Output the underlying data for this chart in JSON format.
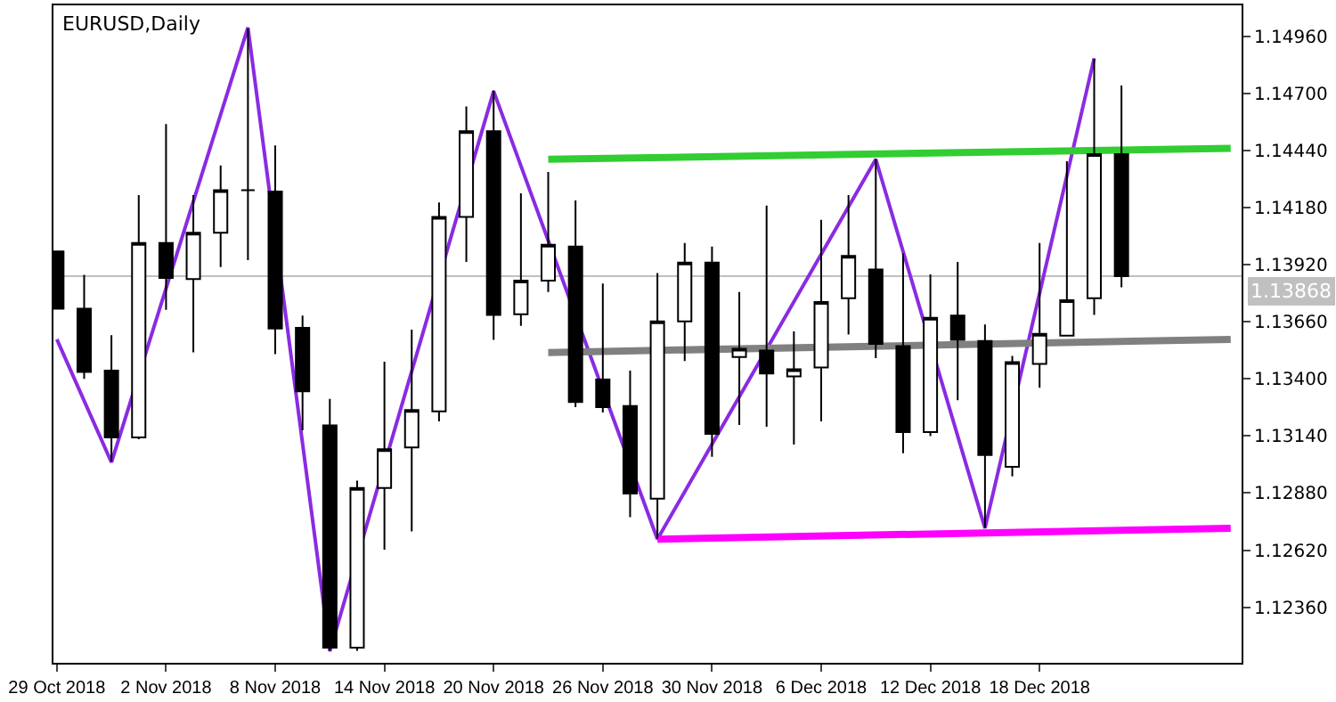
{
  "chart_data": {
    "type": "candlestick",
    "title": "EURUSD,Daily",
    "categories": [
      "29 Oct 2018",
      null,
      null,
      null,
      "2 Nov 2018",
      null,
      null,
      null,
      "8 Nov 2018",
      null,
      null,
      null,
      "14 Nov 2018",
      null,
      null,
      null,
      "20 Nov 2018",
      null,
      null,
      null,
      "26 Nov 2018",
      null,
      null,
      null,
      "30 Nov 2018",
      null,
      null,
      null,
      "6 Dec 2018",
      null,
      null,
      null,
      "12 Dec 2018",
      null,
      null,
      null,
      "18 Dec 2018",
      null,
      null,
      null,
      null,
      null,
      null,
      null
    ],
    "ohlc": [
      [
        1.1398,
        1.1398,
        1.1372,
        1.1372
      ],
      [
        1.1372,
        1.13874,
        1.134,
        1.13432
      ],
      [
        1.13438,
        1.13599,
        1.13024,
        1.13133
      ],
      [
        1.13133,
        1.14237,
        1.13125,
        1.14019
      ],
      [
        1.14019,
        1.1456,
        1.13715,
        1.1386
      ],
      [
        1.13855,
        1.14237,
        1.13521,
        1.14065
      ],
      [
        1.14065,
        1.14372,
        1.13909,
        1.14259
      ],
      [
        1.14259,
        1.14996,
        1.13941,
        1.14259
      ],
      [
        1.14253,
        1.14463,
        1.13513,
        1.13629
      ],
      [
        1.13632,
        1.13688,
        1.13166,
        1.13343
      ],
      [
        1.13188,
        1.13309,
        1.12162,
        1.12176
      ],
      [
        1.12176,
        1.12937,
        1.12162,
        1.12903
      ],
      [
        1.12903,
        1.13478,
        1.12622,
        1.1308
      ],
      [
        1.13088,
        1.13624,
        1.12705,
        1.13258
      ],
      [
        1.13252,
        1.14203,
        1.13206,
        1.14138
      ],
      [
        1.14138,
        1.14641,
        1.13933,
        1.14528
      ],
      [
        1.14528,
        1.14714,
        1.13578,
        1.13691
      ],
      [
        1.13694,
        1.14245,
        1.13642,
        1.13847
      ],
      [
        1.13847,
        1.14342,
        1.13796,
        1.14011
      ],
      [
        1.14003,
        1.14213,
        1.13271,
        1.13295
      ],
      [
        1.13397,
        1.13834,
        1.13247,
        1.13271
      ],
      [
        1.13276,
        1.13438,
        1.1277,
        1.12878
      ],
      [
        1.12854,
        1.13882,
        1.12673,
        1.13662
      ],
      [
        1.13662,
        1.14019,
        1.13481,
        1.1393
      ],
      [
        1.1393,
        1.14003,
        1.13045,
        1.1315
      ],
      [
        1.135,
        1.13796,
        1.1319,
        1.13537
      ],
      [
        1.13529,
        1.14189,
        1.13182,
        1.13424
      ],
      [
        1.13411,
        1.13616,
        1.13101,
        1.13444
      ],
      [
        1.13452,
        1.14124,
        1.13206,
        1.1375
      ],
      [
        1.13767,
        1.14237,
        1.13602,
        1.1396
      ],
      [
        1.13898,
        1.14401,
        1.13494,
        1.13559
      ],
      [
        1.13549,
        1.13971,
        1.13061,
        1.13158
      ],
      [
        1.13158,
        1.13876,
        1.13139,
        1.13678
      ],
      [
        1.13688,
        1.13933,
        1.13303,
        1.13578
      ],
      [
        1.13573,
        1.13648,
        1.12722,
        1.13053
      ],
      [
        1.12999,
        1.13505,
        1.12956,
        1.13476
      ],
      [
        1.13468,
        1.14019,
        1.1336,
        1.13605
      ],
      [
        1.13597,
        1.14391,
        1.13597,
        1.13758
      ],
      [
        1.13767,
        1.14857,
        1.13691,
        1.14423
      ],
      [
        1.14423,
        1.14736,
        1.13817,
        1.13868
      ],
      null,
      null,
      null,
      null
    ],
    "series": [
      {
        "type": "line",
        "color": "#8a2be2",
        "values": [
          1.1358,
          null,
          1.1302,
          null,
          null,
          null,
          null,
          1.15,
          null,
          null,
          1.1216,
          null,
          null,
          null,
          null,
          null,
          1.1471,
          null,
          null,
          null,
          null,
          null,
          1.1267,
          null,
          null,
          null,
          null,
          null,
          null,
          null,
          1.144,
          null,
          null,
          null,
          1.1272,
          null,
          null,
          null,
          1.1486,
          null,
          null,
          null,
          null,
          null
        ]
      },
      {
        "type": "line",
        "color": "#32cd32",
        "values": [
          null,
          null,
          null,
          null,
          null,
          null,
          null,
          null,
          null,
          null,
          null,
          null,
          null,
          null,
          null,
          null,
          null,
          null,
          1.144,
          null,
          null,
          null,
          null,
          null,
          null,
          null,
          null,
          null,
          null,
          null,
          null,
          null,
          null,
          null,
          null,
          null,
          null,
          null,
          null,
          null,
          null,
          null,
          null,
          1.1445
        ]
      },
      {
        "type": "line",
        "color": "#808080",
        "values": [
          null,
          null,
          null,
          null,
          null,
          null,
          null,
          null,
          null,
          null,
          null,
          null,
          null,
          null,
          null,
          null,
          null,
          null,
          1.1352,
          null,
          null,
          null,
          null,
          null,
          null,
          null,
          null,
          null,
          null,
          null,
          null,
          null,
          null,
          null,
          null,
          null,
          null,
          null,
          null,
          null,
          null,
          null,
          null,
          1.1358
        ]
      },
      {
        "type": "line",
        "color": "#ff00ff",
        "values": [
          null,
          null,
          null,
          null,
          null,
          null,
          null,
          null,
          null,
          null,
          null,
          null,
          null,
          null,
          null,
          null,
          null,
          null,
          null,
          null,
          null,
          null,
          1.1267,
          null,
          null,
          null,
          null,
          null,
          null,
          null,
          null,
          null,
          null,
          null,
          null,
          null,
          null,
          null,
          null,
          null,
          null,
          null,
          null,
          1.1272
        ]
      }
    ],
    "ylim": [
      1.12107,
      1.15101
    ],
    "yticks": [
      {
        "value": 1.1236,
        "label": "1.12360"
      },
      {
        "value": 1.1262,
        "label": "1.12620"
      },
      {
        "value": 1.1288,
        "label": "1.12880"
      },
      {
        "value": 1.1314,
        "label": "1.13140"
      },
      {
        "value": 1.134,
        "label": "1.13400"
      },
      {
        "value": 1.1366,
        "label": "1.13660"
      },
      {
        "value": 1.1392,
        "label": "1.13920"
      },
      {
        "value": 1.1418,
        "label": "1.14180"
      },
      {
        "value": 1.1444,
        "label": "1.14440"
      },
      {
        "value": 1.147,
        "label": "1.14700"
      },
      {
        "value": 1.1496,
        "label": "1.14960"
      }
    ],
    "ref_lines": [
      {
        "axis": "y",
        "value": 1.13868,
        "label": "1.13868",
        "color": "#c0c0c0"
      }
    ],
    "grid": false
  }
}
